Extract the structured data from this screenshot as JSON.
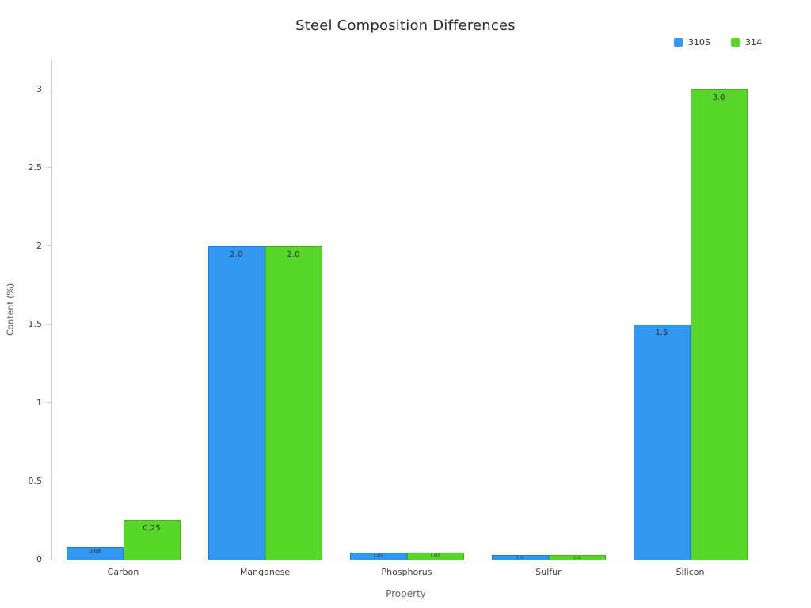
{
  "header": {
    "title": "Steel Composition Differences"
  },
  "chart_data": {
    "type": "bar",
    "title": "Steel Composition Differences",
    "xlabel": "Property",
    "ylabel": "Content (%)",
    "categories": [
      "Carbon",
      "Manganese",
      "Phosphorus",
      "Sulfur",
      "Silicon"
    ],
    "series": [
      {
        "name": "310S",
        "color": "#3398F2",
        "edge": "#1d7fd4",
        "values": [
          0.08,
          2.0,
          0.045,
          0.03,
          1.5
        ],
        "value_labels": [
          "0.08",
          "2.0",
          "0.045",
          "0.03",
          "1.5"
        ]
      },
      {
        "name": "314",
        "color": "#58D62A",
        "edge": "#43b51c",
        "values": [
          0.25,
          2.0,
          0.045,
          0.03,
          3.0
        ],
        "value_labels": [
          "0.25",
          "2.0",
          "0.045",
          "0.03",
          "3.0"
        ]
      }
    ],
    "ylim": [
      0,
      3.19
    ],
    "yticks": [
      0,
      0.5,
      1,
      1.5,
      2,
      2.5,
      3
    ],
    "ytick_labels": [
      "0",
      "0.5",
      "1",
      "1.5",
      "2",
      "2.5",
      "3"
    ],
    "grid": false,
    "legend_position": "top-right"
  }
}
